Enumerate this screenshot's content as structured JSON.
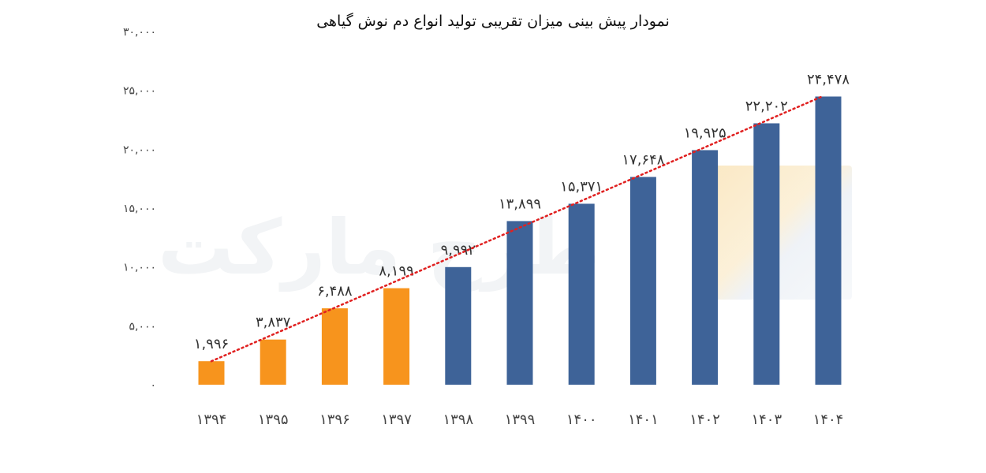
{
  "chart_data": {
    "type": "bar",
    "title": "نمودار پیش بینی میزان تقریبی تولید انواع دم نوش گیاهی",
    "xlabel": "",
    "ylabel": "",
    "ylim": [
      0,
      30000
    ],
    "y_ticks": [
      "۰",
      "۵,۰۰۰",
      "۱۰,۰۰۰",
      "۱۵,۰۰۰",
      "۲۰,۰۰۰",
      "۲۵,۰۰۰",
      "۳۰,۰۰۰"
    ],
    "y_tick_values": [
      0,
      5000,
      10000,
      15000,
      20000,
      25000,
      30000
    ],
    "categories": [
      "۱۳۹۴",
      "۱۳۹۵",
      "۱۳۹۶",
      "۱۳۹۷",
      "۱۳۹۸",
      "۱۳۹۹",
      "۱۴۰۰",
      "۱۴۰۱",
      "۱۴۰۲",
      "۱۴۰۳",
      "۱۴۰۴"
    ],
    "values": [
      1996,
      3837,
      6488,
      8199,
      9992,
      13899,
      15371,
      17648,
      19925,
      22202,
      24478
    ],
    "value_labels": [
      "۱,۹۹۶",
      "۳,۸۳۷",
      "۶,۴۸۸",
      "۸,۱۹۹",
      "۹,۹۹۲",
      "۱۳,۸۹۹",
      "۱۵,۳۷۱",
      "۱۷,۶۴۸",
      "۱۹,۹۲۵",
      "۲۲,۲۰۲",
      "۲۴,۴۷۸"
    ],
    "bar_colors": [
      "#f7941d",
      "#f7941d",
      "#f7941d",
      "#f7941d",
      "#3e6398",
      "#3e6398",
      "#3e6398",
      "#3e6398",
      "#3e6398",
      "#3e6398",
      "#3e6398"
    ],
    "trendline": {
      "color": "#e02020",
      "style": "dotted",
      "from_value": 1996,
      "to_value": 24478
    },
    "grid": false,
    "legend": "none"
  },
  "watermark": {
    "text": "طرح مارکت"
  }
}
